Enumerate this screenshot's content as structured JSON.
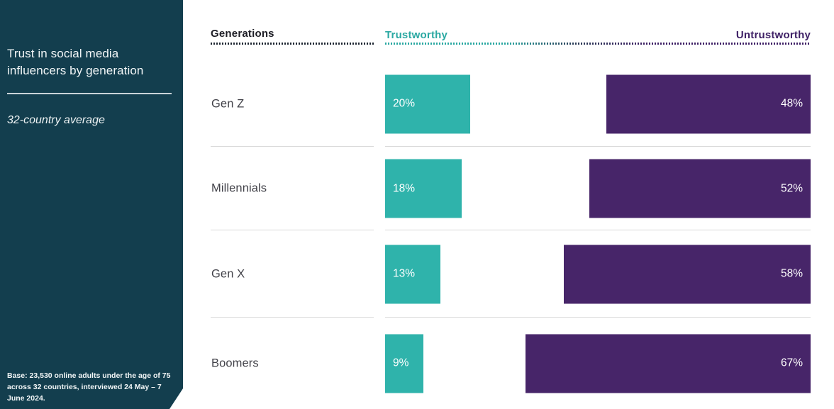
{
  "sidebar": {
    "title": "Trust in social media influencers by generation",
    "subtitle": "32-country average",
    "base_note": "Base: 23,530 online adults under the age of 75 across 32 countries, interviewed 24 May – 7 June 2024.",
    "background_color": "#133E4E"
  },
  "chart_data": {
    "type": "bar",
    "orientation": "horizontal",
    "title": "Trust in social media influencers by generation",
    "subtitle": "32-country average",
    "column_header": "Generations",
    "categories": [
      "Gen Z",
      "Millennials",
      "Gen X",
      "Boomers"
    ],
    "series": [
      {
        "name": "Trustworthy",
        "color": "#2FB3AB",
        "header_color": "#2AA8A2",
        "values": [
          20,
          18,
          13,
          9
        ],
        "labels": [
          "20%",
          "18%",
          "13%",
          "9%"
        ]
      },
      {
        "name": "Untrustworthy",
        "color": "#472569",
        "header_color": "#3F2166",
        "values": [
          48,
          52,
          58,
          67
        ],
        "labels": [
          "48%",
          "52%",
          "58%",
          "67%"
        ]
      }
    ],
    "value_suffix": "%",
    "axis_range": [
      0,
      100
    ],
    "grid": false,
    "legend_position": "top"
  }
}
